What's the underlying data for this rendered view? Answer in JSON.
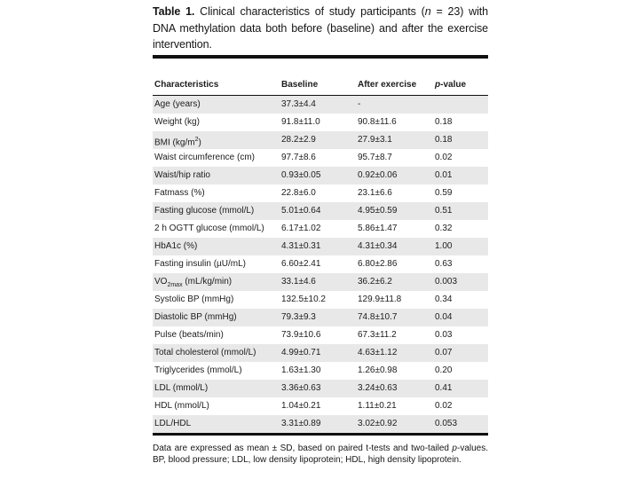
{
  "colors": {
    "text": "#1c1c1c",
    "rule": "#101010",
    "row_shade": "#e8e8e8",
    "background": "#ffffff"
  },
  "table": {
    "title": {
      "label": "Table 1.",
      "pre": " Clinical characteristics of study participants (",
      "n": "n",
      "post": " = 23) with DNA methylation data both before (baseline) and after the exercise intervention."
    },
    "headers": {
      "characteristic": "Characteristics",
      "baseline": "Baseline",
      "after": "After exercise",
      "p_italic": "p",
      "p_rest": "-value"
    },
    "rows": [
      {
        "label": "Age (years)",
        "baseline": "37.3±4.4",
        "after": "-",
        "p": ""
      },
      {
        "label": "Weight (kg)",
        "baseline": "91.8±11.0",
        "after": "90.8±11.6",
        "p": "0.18"
      },
      {
        "label_parts": [
          {
            "text": "BMI (kg/m"
          },
          {
            "text": "2",
            "fmt": "sup"
          },
          {
            "text": ")"
          }
        ],
        "baseline": "28.2±2.9",
        "after": "27.9±3.1",
        "p": "0.18"
      },
      {
        "label": "Waist circumference (cm)",
        "baseline": "97.7±8.6",
        "after": "95.7±8.7",
        "p": "0.02"
      },
      {
        "label": "Waist/hip ratio",
        "baseline": "0.93±0.05",
        "after": "0.92±0.06",
        "p": "0.01"
      },
      {
        "label": "Fatmass (%)",
        "baseline": "22.8±6.0",
        "after": "23.1±6.6",
        "p": "0.59"
      },
      {
        "label": "Fasting glucose (mmol/L)",
        "baseline": "5.01±0.64",
        "after": "4.95±0.59",
        "p": "0.51"
      },
      {
        "label": "2 h OGTT glucose (mmol/L)",
        "baseline": "6.17±1.02",
        "after": "5.86±1.47",
        "p": "0.32"
      },
      {
        "label": "HbA1c (%)",
        "baseline": "4.31±0.31",
        "after": "4.31±0.34",
        "p": "1.00"
      },
      {
        "label": "Fasting insulin (µU/mL)",
        "baseline": "6.60±2.41",
        "after": "6.80±2.86",
        "p": "0.63"
      },
      {
        "label_parts": [
          {
            "text": "VO"
          },
          {
            "text": "2max",
            "fmt": "sub"
          },
          {
            "text": " (mL/kg/min)"
          }
        ],
        "baseline": "33.1±4.6",
        "after": "36.2±6.2",
        "p": "0.003"
      },
      {
        "label": "Systolic BP (mmHg)",
        "baseline": "132.5±10.2",
        "after": "129.9±11.8",
        "p": "0.34"
      },
      {
        "label": "Diastolic BP (mmHg)",
        "baseline": "79.3±9.3",
        "after": "74.8±10.7",
        "p": "0.04"
      },
      {
        "label": "Pulse (beats/min)",
        "baseline": "73.9±10.6",
        "after": "67.3±11.2",
        "p": "0.03"
      },
      {
        "label": "Total cholesterol (mmol/L)",
        "baseline": "4.99±0.71",
        "after": "4.63±1.12",
        "p": "0.07"
      },
      {
        "label": "Triglycerides (mmol/L)",
        "baseline": "1.63±1.30",
        "after": "1.26±0.98",
        "p": "0.20"
      },
      {
        "label": "LDL (mmol/L)",
        "baseline": "3.36±0.63",
        "after": "3.24±0.63",
        "p": "0.41"
      },
      {
        "label": "HDL (mmol/L)",
        "baseline": "1.04±0.21",
        "after": "1.11±0.21",
        "p": "0.02"
      },
      {
        "label": "LDL/HDL",
        "baseline": "3.31±0.89",
        "after": "3.02±0.92",
        "p": "0.053"
      }
    ],
    "footnote": {
      "pre": "Data are expressed as mean ± SD, based on paired t-tests and two-tailed ",
      "p": "p",
      "post": "-values. BP, blood pressure; LDL, low density lipoprotein; HDL, high density lipoprotein."
    }
  }
}
